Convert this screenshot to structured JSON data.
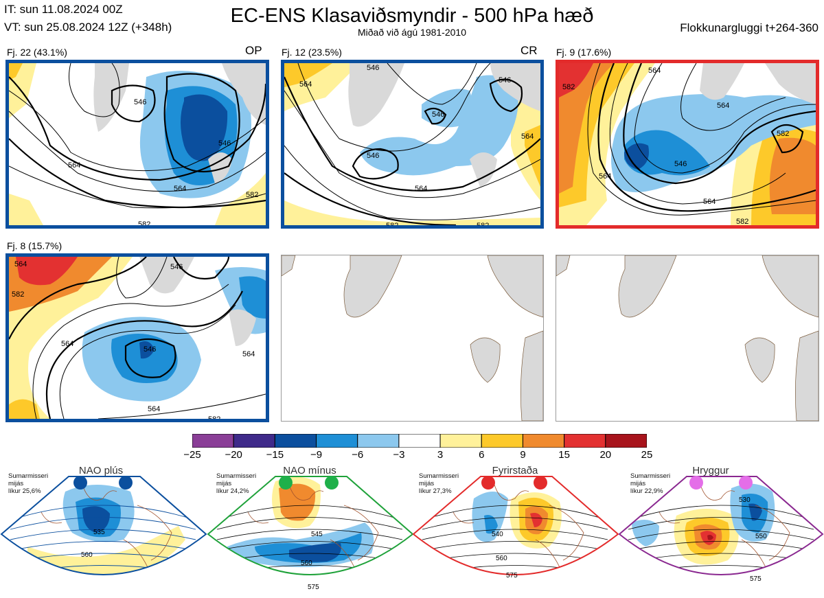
{
  "header": {
    "it": "IT: sun 11.08.2024 00Z",
    "vt": "VT: sun 25.08.2024 12Z  (+348h)",
    "title": "EC-ENS Klasaviðsmyndir - 500 hPa hæð",
    "subtitle": "Miðað við ágú 1981-2010",
    "window": "Flokkunargluggi t+264-360"
  },
  "panels": [
    {
      "label": "Fj. 22 (43.1%)",
      "tag": "OP",
      "frame_color": "#0b4f9e",
      "contours": [
        "546",
        "564",
        "582",
        "564",
        "546",
        "582"
      ]
    },
    {
      "label": "Fj. 12 (23.5%)",
      "tag": "CR",
      "frame_color": "#0b4f9e",
      "contours": [
        "564",
        "546",
        "546",
        "546",
        "564",
        "564",
        "582",
        "582",
        "546"
      ]
    },
    {
      "label": "Fj. 9 (17.6%)",
      "tag": "",
      "frame_color": "#e32b2b",
      "contours": [
        "582",
        "564",
        "564",
        "582",
        "546",
        "564",
        "564",
        "582"
      ]
    },
    {
      "label": "Fj. 8 (15.7%)",
      "tag": "",
      "frame_color": "#0b4f9e",
      "contours": [
        "564",
        "582",
        "546",
        "564",
        "546",
        "564",
        "564",
        "582"
      ]
    }
  ],
  "colorbar": {
    "ticks": [
      "−25",
      "−20",
      "−15",
      "−9",
      "−6",
      "−3",
      "3",
      "6",
      "9",
      "15",
      "20",
      "25"
    ],
    "colors": [
      "#8a3e97",
      "#3f2a8a",
      "#0b4f9e",
      "#1e8fd6",
      "#8cc8ee",
      "#ffffff",
      "#fff19a",
      "#fdc92a",
      "#f08a2e",
      "#e33131",
      "#a8141c"
    ]
  },
  "regimes": [
    {
      "name": "NAO plús",
      "line1": "Sumarmisseri",
      "line2": "mijás",
      "line3": "líkur 25,6%",
      "frame_color": "#0b4f9e",
      "dot_color": "#0b4f9e",
      "contours": [
        "535",
        "560"
      ]
    },
    {
      "name": "NAO mínus",
      "line1": "Sumarmisseri",
      "line2": "mijás",
      "line3": "líkur 24,2%",
      "frame_color": "#1fa23a",
      "dot_color": "#1fb04a",
      "contours": [
        "545",
        "560",
        "575"
      ]
    },
    {
      "name": "Fyrirstaða",
      "line1": "Sumarmisseri",
      "line2": "mijás",
      "line3": "líkur 27,3%",
      "frame_color": "#e32b2b",
      "dot_color": "#e32b2b",
      "contours": [
        "540",
        "560",
        "575"
      ]
    },
    {
      "name": "Hryggur",
      "line1": "Sumarmisseri",
      "line2": "mijás",
      "line3": "líkur 22,9%",
      "frame_color": "#8a2890",
      "dot_color": "#e46ee8",
      "contours": [
        "530",
        "550",
        "575"
      ]
    }
  ]
}
